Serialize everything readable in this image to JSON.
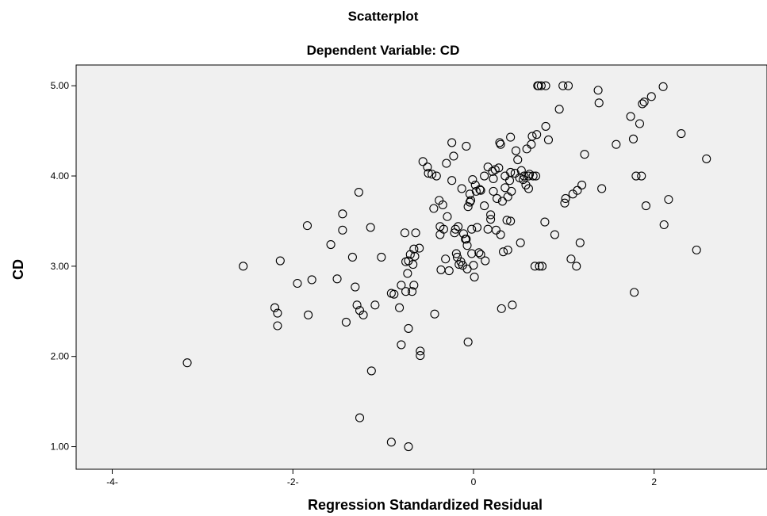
{
  "chart_data": {
    "type": "scatter",
    "title": "Scatterplot",
    "subtitle": "Dependent Variable: CD",
    "xlabel": "Regression Standardized Residual",
    "ylabel": "CD",
    "xlim": [
      -4.4,
      3.25
    ],
    "ylim": [
      0.75,
      5.23
    ],
    "x_ticks": [
      -4,
      -2,
      0,
      2
    ],
    "x_tick_labels": [
      "-4-",
      "-2-",
      "0",
      "2"
    ],
    "y_ticks": [
      1,
      2,
      3,
      4,
      5
    ],
    "y_tick_labels": [
      "1.00",
      "2.00",
      "3.00",
      "4.00",
      "5.00"
    ],
    "grid": false,
    "plot_background": "#f0f0f0",
    "marker_color": "#000000",
    "marker": "open-circle",
    "points": [
      {
        "x": -3.17,
        "y": 1.93
      },
      {
        "x": -2.55,
        "y": 3.0
      },
      {
        "x": -2.2,
        "y": 2.54
      },
      {
        "x": -2.17,
        "y": 2.48
      },
      {
        "x": -2.17,
        "y": 2.34
      },
      {
        "x": -2.14,
        "y": 3.06
      },
      {
        "x": -1.95,
        "y": 2.81
      },
      {
        "x": -1.84,
        "y": 3.45
      },
      {
        "x": -1.83,
        "y": 2.46
      },
      {
        "x": -1.79,
        "y": 2.85
      },
      {
        "x": -1.58,
        "y": 3.24
      },
      {
        "x": -1.51,
        "y": 2.86
      },
      {
        "x": -1.45,
        "y": 3.58
      },
      {
        "x": -1.45,
        "y": 3.4
      },
      {
        "x": -1.41,
        "y": 2.38
      },
      {
        "x": -1.34,
        "y": 3.1
      },
      {
        "x": -1.31,
        "y": 2.77
      },
      {
        "x": -1.29,
        "y": 2.57
      },
      {
        "x": -1.27,
        "y": 3.82
      },
      {
        "x": -1.26,
        "y": 2.51
      },
      {
        "x": -1.26,
        "y": 1.32
      },
      {
        "x": -1.22,
        "y": 2.46
      },
      {
        "x": -1.14,
        "y": 3.43
      },
      {
        "x": -1.13,
        "y": 1.84
      },
      {
        "x": -1.09,
        "y": 2.57
      },
      {
        "x": -1.02,
        "y": 3.1
      },
      {
        "x": -0.91,
        "y": 2.7
      },
      {
        "x": -0.91,
        "y": 1.05
      },
      {
        "x": -0.88,
        "y": 2.69
      },
      {
        "x": -0.82,
        "y": 2.54
      },
      {
        "x": -0.8,
        "y": 2.79
      },
      {
        "x": -0.8,
        "y": 2.13
      },
      {
        "x": -0.76,
        "y": 3.37
      },
      {
        "x": -0.75,
        "y": 3.05
      },
      {
        "x": -0.75,
        "y": 2.72
      },
      {
        "x": -0.73,
        "y": 2.92
      },
      {
        "x": -0.72,
        "y": 3.06
      },
      {
        "x": -0.72,
        "y": 2.31
      },
      {
        "x": -0.72,
        "y": 1.0
      },
      {
        "x": -0.7,
        "y": 3.13
      },
      {
        "x": -0.68,
        "y": 2.72
      },
      {
        "x": -0.67,
        "y": 3.02
      },
      {
        "x": -0.66,
        "y": 3.19
      },
      {
        "x": -0.66,
        "y": 2.79
      },
      {
        "x": -0.65,
        "y": 3.11
      },
      {
        "x": -0.64,
        "y": 3.37
      },
      {
        "x": -0.6,
        "y": 3.2
      },
      {
        "x": -0.59,
        "y": 2.06
      },
      {
        "x": -0.59,
        "y": 2.01
      },
      {
        "x": -0.56,
        "y": 4.16
      },
      {
        "x": -0.51,
        "y": 4.1
      },
      {
        "x": -0.5,
        "y": 4.03
      },
      {
        "x": -0.46,
        "y": 4.02
      },
      {
        "x": -0.44,
        "y": 3.64
      },
      {
        "x": -0.43,
        "y": 2.47
      },
      {
        "x": -0.41,
        "y": 4.0
      },
      {
        "x": -0.38,
        "y": 3.73
      },
      {
        "x": -0.37,
        "y": 3.44
      },
      {
        "x": -0.37,
        "y": 3.35
      },
      {
        "x": -0.36,
        "y": 2.96
      },
      {
        "x": -0.34,
        "y": 3.68
      },
      {
        "x": -0.33,
        "y": 3.41
      },
      {
        "x": -0.31,
        "y": 3.08
      },
      {
        "x": -0.3,
        "y": 4.14
      },
      {
        "x": -0.29,
        "y": 3.55
      },
      {
        "x": -0.27,
        "y": 2.95
      },
      {
        "x": -0.24,
        "y": 4.37
      },
      {
        "x": -0.24,
        "y": 3.95
      },
      {
        "x": -0.22,
        "y": 4.22
      },
      {
        "x": -0.21,
        "y": 3.37
      },
      {
        "x": -0.2,
        "y": 3.41
      },
      {
        "x": -0.19,
        "y": 3.14
      },
      {
        "x": -0.18,
        "y": 3.1
      },
      {
        "x": -0.17,
        "y": 3.44
      },
      {
        "x": -0.16,
        "y": 3.02
      },
      {
        "x": -0.14,
        "y": 3.05
      },
      {
        "x": -0.13,
        "y": 3.86
      },
      {
        "x": -0.12,
        "y": 3.01
      },
      {
        "x": -0.11,
        "y": 3.36
      },
      {
        "x": -0.09,
        "y": 3.3
      },
      {
        "x": -0.08,
        "y": 4.33
      },
      {
        "x": -0.08,
        "y": 3.3
      },
      {
        "x": -0.07,
        "y": 3.23
      },
      {
        "x": -0.07,
        "y": 2.97
      },
      {
        "x": -0.06,
        "y": 3.66
      },
      {
        "x": -0.06,
        "y": 2.16
      },
      {
        "x": -0.04,
        "y": 3.8
      },
      {
        "x": -0.04,
        "y": 3.71
      },
      {
        "x": -0.03,
        "y": 3.73
      },
      {
        "x": -0.02,
        "y": 3.14
      },
      {
        "x": -0.02,
        "y": 3.41
      },
      {
        "x": -0.01,
        "y": 3.96
      },
      {
        "x": 0.0,
        "y": 3.01
      },
      {
        "x": 0.01,
        "y": 2.88
      },
      {
        "x": 0.02,
        "y": 3.9
      },
      {
        "x": 0.03,
        "y": 3.83
      },
      {
        "x": 0.04,
        "y": 3.43
      },
      {
        "x": 0.06,
        "y": 3.15
      },
      {
        "x": 0.07,
        "y": 3.85
      },
      {
        "x": 0.08,
        "y": 3.84
      },
      {
        "x": 0.08,
        "y": 3.13
      },
      {
        "x": 0.12,
        "y": 3.67
      },
      {
        "x": 0.12,
        "y": 4.0
      },
      {
        "x": 0.13,
        "y": 3.06
      },
      {
        "x": 0.16,
        "y": 3.41
      },
      {
        "x": 0.16,
        "y": 4.1
      },
      {
        "x": 0.19,
        "y": 3.52
      },
      {
        "x": 0.19,
        "y": 3.57
      },
      {
        "x": 0.21,
        "y": 4.05
      },
      {
        "x": 0.22,
        "y": 3.97
      },
      {
        "x": 0.22,
        "y": 3.83
      },
      {
        "x": 0.24,
        "y": 4.07
      },
      {
        "x": 0.25,
        "y": 3.4
      },
      {
        "x": 0.26,
        "y": 3.75
      },
      {
        "x": 0.28,
        "y": 4.09
      },
      {
        "x": 0.29,
        "y": 4.37
      },
      {
        "x": 0.3,
        "y": 3.35
      },
      {
        "x": 0.3,
        "y": 4.35
      },
      {
        "x": 0.31,
        "y": 2.53
      },
      {
        "x": 0.32,
        "y": 3.72
      },
      {
        "x": 0.33,
        "y": 3.16
      },
      {
        "x": 0.35,
        "y": 4.0
      },
      {
        "x": 0.35,
        "y": 3.87
      },
      {
        "x": 0.37,
        "y": 3.51
      },
      {
        "x": 0.38,
        "y": 3.18
      },
      {
        "x": 0.38,
        "y": 3.77
      },
      {
        "x": 0.4,
        "y": 3.95
      },
      {
        "x": 0.41,
        "y": 3.5
      },
      {
        "x": 0.41,
        "y": 4.04
      },
      {
        "x": 0.41,
        "y": 4.43
      },
      {
        "x": 0.42,
        "y": 3.83
      },
      {
        "x": 0.43,
        "y": 2.57
      },
      {
        "x": 0.46,
        "y": 4.03
      },
      {
        "x": 0.47,
        "y": 4.28
      },
      {
        "x": 0.49,
        "y": 4.18
      },
      {
        "x": 0.51,
        "y": 3.98
      },
      {
        "x": 0.52,
        "y": 3.26
      },
      {
        "x": 0.53,
        "y": 4.06
      },
      {
        "x": 0.55,
        "y": 3.96
      },
      {
        "x": 0.56,
        "y": 4.0
      },
      {
        "x": 0.58,
        "y": 3.9
      },
      {
        "x": 0.59,
        "y": 4.3
      },
      {
        "x": 0.61,
        "y": 3.86
      },
      {
        "x": 0.61,
        "y": 4.0
      },
      {
        "x": 0.62,
        "y": 4.02
      },
      {
        "x": 0.64,
        "y": 4.35
      },
      {
        "x": 0.65,
        "y": 4.44
      },
      {
        "x": 0.66,
        "y": 4.0
      },
      {
        "x": 0.68,
        "y": 3.0
      },
      {
        "x": 0.69,
        "y": 4.0
      },
      {
        "x": 0.7,
        "y": 4.46
      },
      {
        "x": 0.71,
        "y": 5.0
      },
      {
        "x": 0.72,
        "y": 5.0
      },
      {
        "x": 0.73,
        "y": 3.0
      },
      {
        "x": 0.75,
        "y": 5.0
      },
      {
        "x": 0.76,
        "y": 3.0
      },
      {
        "x": 0.79,
        "y": 3.49
      },
      {
        "x": 0.8,
        "y": 4.55
      },
      {
        "x": 0.8,
        "y": 5.0
      },
      {
        "x": 0.83,
        "y": 4.4
      },
      {
        "x": 0.9,
        "y": 3.35
      },
      {
        "x": 0.95,
        "y": 4.74
      },
      {
        "x": 0.99,
        "y": 5.0
      },
      {
        "x": 1.01,
        "y": 3.7
      },
      {
        "x": 1.02,
        "y": 3.75
      },
      {
        "x": 1.05,
        "y": 5.0
      },
      {
        "x": 1.08,
        "y": 3.08
      },
      {
        "x": 1.1,
        "y": 3.8
      },
      {
        "x": 1.14,
        "y": 3.0
      },
      {
        "x": 1.15,
        "y": 3.84
      },
      {
        "x": 1.18,
        "y": 3.26
      },
      {
        "x": 1.2,
        "y": 3.9
      },
      {
        "x": 1.23,
        "y": 4.24
      },
      {
        "x": 1.38,
        "y": 4.95
      },
      {
        "x": 1.39,
        "y": 4.81
      },
      {
        "x": 1.42,
        "y": 3.86
      },
      {
        "x": 1.58,
        "y": 4.35
      },
      {
        "x": 1.74,
        "y": 4.66
      },
      {
        "x": 1.77,
        "y": 4.41
      },
      {
        "x": 1.78,
        "y": 2.71
      },
      {
        "x": 1.8,
        "y": 4.0
      },
      {
        "x": 1.84,
        "y": 4.58
      },
      {
        "x": 1.86,
        "y": 4.0
      },
      {
        "x": 1.87,
        "y": 4.8
      },
      {
        "x": 1.89,
        "y": 4.82
      },
      {
        "x": 1.91,
        "y": 3.67
      },
      {
        "x": 1.97,
        "y": 4.88
      },
      {
        "x": 2.1,
        "y": 4.99
      },
      {
        "x": 2.11,
        "y": 3.46
      },
      {
        "x": 2.16,
        "y": 3.74
      },
      {
        "x": 2.3,
        "y": 4.47
      },
      {
        "x": 2.47,
        "y": 3.18
      },
      {
        "x": 2.58,
        "y": 4.19
      }
    ]
  }
}
